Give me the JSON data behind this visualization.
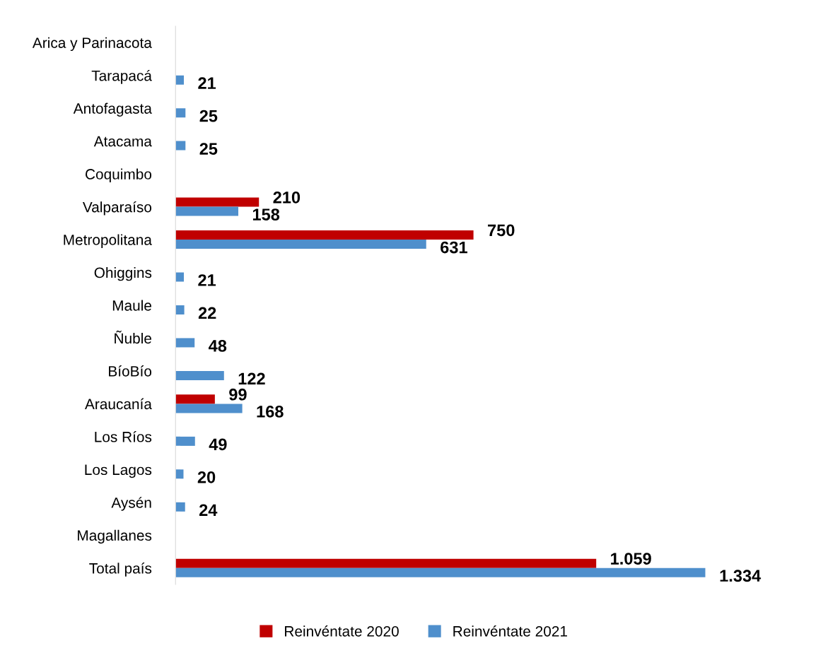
{
  "chart_data": {
    "type": "bar",
    "orientation": "horizontal",
    "categories": [
      "Arica y Parinacota",
      "Tarapacá",
      "Antofagasta",
      "Atacama",
      "Coquimbo",
      "Valparaíso",
      "Metropolitana",
      "Ohiggins",
      "Maule",
      "Ñuble",
      "BíoBío",
      "Araucanía",
      "Los Ríos",
      "Los Lagos",
      "Aysén",
      "Magallanes",
      "Total país"
    ],
    "series": [
      {
        "name": "Reinvéntate 2020",
        "color": "#c00000",
        "values": [
          null,
          null,
          null,
          null,
          null,
          210,
          750,
          null,
          null,
          null,
          null,
          99,
          null,
          null,
          null,
          null,
          1059
        ],
        "value_labels": [
          null,
          null,
          null,
          null,
          null,
          "210",
          "750",
          null,
          null,
          null,
          null,
          "99",
          null,
          null,
          null,
          null,
          "1.059"
        ]
      },
      {
        "name": "Reinvéntate 2021",
        "color": "#4f8fcc",
        "values": [
          null,
          21,
          25,
          25,
          null,
          158,
          631,
          21,
          22,
          48,
          122,
          168,
          49,
          20,
          24,
          null,
          1334
        ],
        "value_labels": [
          null,
          "21",
          "25",
          "25",
          null,
          "158",
          "631",
          "21",
          "22",
          "48",
          "122",
          "168",
          "49",
          "20",
          "24",
          null,
          "1.334"
        ]
      }
    ],
    "tick_labels": "y",
    "grid": false,
    "legend": "bottom"
  }
}
